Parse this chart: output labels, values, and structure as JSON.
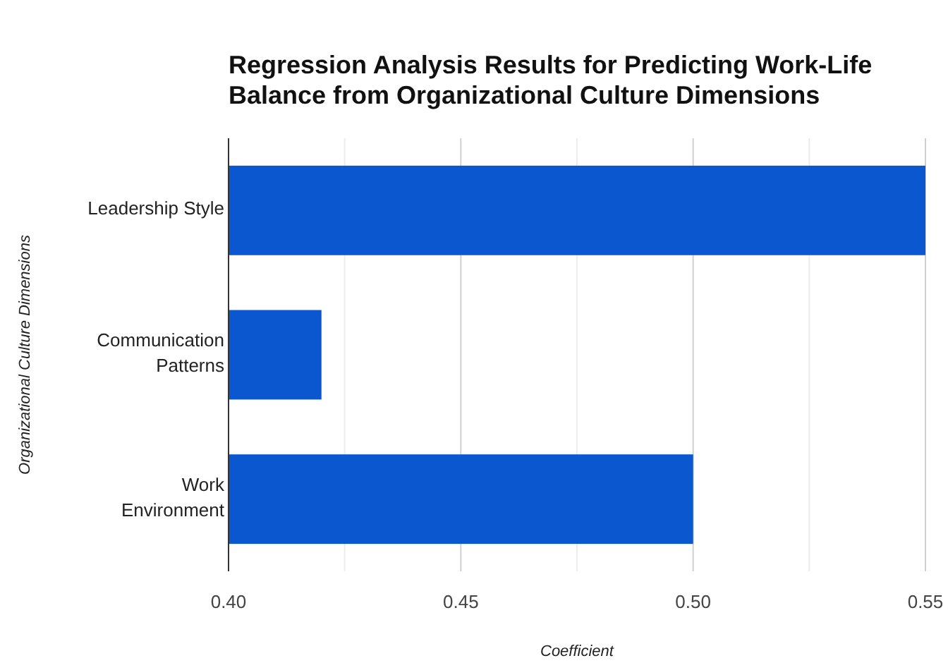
{
  "chart_data": {
    "type": "bar",
    "orientation": "horizontal",
    "title": "Regression Analysis Results for Predicting Work-Life Balance from Organizational Culture Dimensions",
    "xlabel": "Coefficient",
    "ylabel": "Organizational Culture Dimensions",
    "categories": [
      "Leadership Style",
      "Communication Patterns",
      "Work Environment"
    ],
    "values": [
      0.55,
      0.42,
      0.5
    ],
    "color": "#0b57d0",
    "xlim": [
      0.4,
      0.55
    ],
    "xticks": [
      {
        "value": 0.4,
        "label": "0.40"
      },
      {
        "value": 0.425,
        "label": null
      },
      {
        "value": 0.45,
        "label": "0.45"
      },
      {
        "value": 0.475,
        "label": null
      },
      {
        "value": 0.5,
        "label": "0.50"
      },
      {
        "value": 0.525,
        "label": null
      },
      {
        "value": 0.55,
        "label": "0.55"
      }
    ],
    "grid": "x"
  }
}
